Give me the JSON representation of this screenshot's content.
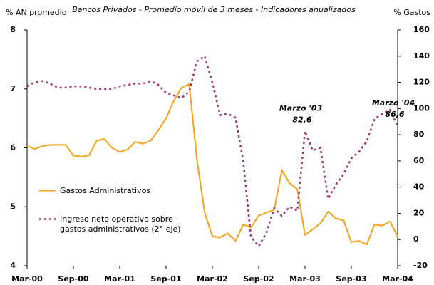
{
  "chart_data": {
    "type": "line",
    "subtitle": "Bancos Privados - Promedio móvil de 3 meses - Indicadores anualizados",
    "y_label": "% AN promedio",
    "y2_label": "% Gastos",
    "categories": [
      "Mar-00",
      null,
      null,
      null,
      null,
      null,
      "Sep-00",
      null,
      null,
      null,
      null,
      null,
      "Mar-01",
      null,
      null,
      null,
      null,
      null,
      "Sep-01",
      null,
      null,
      null,
      null,
      null,
      "Mar-02",
      null,
      null,
      null,
      null,
      null,
      "Sep-02",
      null,
      null,
      null,
      null,
      null,
      "Mar-03",
      null,
      null,
      null,
      null,
      null,
      "Sep-03",
      null,
      null,
      null,
      null,
      null,
      "Mar-04"
    ],
    "series": [
      {
        "name": "Gastos Administrativos",
        "color": "#f7a21b",
        "axis": "y",
        "line_style": "solid",
        "values": [
          6.03,
          5.98,
          6.03,
          6.05,
          6.05,
          6.05,
          5.87,
          5.85,
          5.87,
          6.12,
          6.15,
          6.0,
          5.93,
          5.97,
          6.1,
          6.07,
          6.12,
          6.3,
          6.5,
          6.8,
          7.02,
          7.08,
          5.8,
          4.9,
          4.5,
          4.48,
          4.55,
          4.42,
          4.7,
          4.65,
          4.85,
          4.9,
          4.95,
          5.62,
          5.4,
          5.3,
          4.52,
          4.62,
          4.72,
          4.92,
          4.8,
          4.77,
          4.4,
          4.42,
          4.36,
          4.7,
          4.68,
          4.75,
          4.5
        ]
      },
      {
        "name": "Ingreso neto operativo sobre gastos administrativos (2° eje)",
        "color": "#a0346e",
        "axis": "y2",
        "line_style": "dotted",
        "values": [
          117,
          120,
          121,
          119,
          116,
          116,
          117,
          117,
          116,
          115,
          115,
          115,
          117,
          118,
          119,
          119,
          121,
          118,
          112,
          110,
          108,
          113,
          136,
          140,
          120,
          95,
          96,
          93,
          60,
          2,
          -5,
          5,
          24,
          18,
          25,
          22,
          82.6,
          68,
          70,
          31,
          42,
          50,
          62,
          67,
          75,
          92,
          96,
          99,
          86.6
        ]
      }
    ],
    "annotations": [
      {
        "x": "Mar-03",
        "text": "Marzo '03",
        "value": 82.6,
        "value_label": "82,6"
      },
      {
        "x": "Mar-04",
        "text": "Marzo '04",
        "value": 86.6,
        "value_label": "86,6"
      }
    ],
    "ylim": [
      4,
      8
    ],
    "yticks": [
      4,
      5,
      6,
      7,
      8
    ],
    "y2lim": [
      -20,
      160
    ],
    "y2ticks": [
      -20,
      0,
      20,
      40,
      60,
      80,
      100,
      120,
      140,
      160
    ],
    "legend": "center left"
  }
}
